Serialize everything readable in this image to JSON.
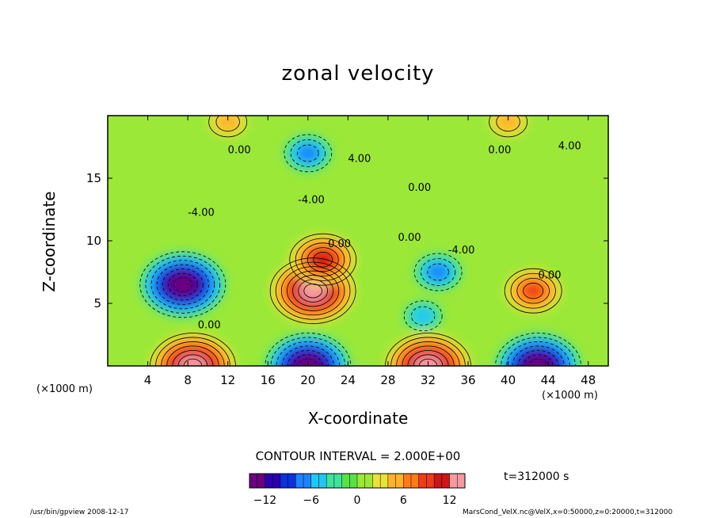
{
  "chart_data": {
    "type": "heatmap",
    "title": "zonal velocity",
    "xlabel": "X-coordinate",
    "ylabel": "Z-coordinate",
    "x_unit_label": "(×1000 m)",
    "xlim": [
      0,
      50
    ],
    "ylim": [
      0,
      20
    ],
    "x_ticks": [
      "4",
      "8",
      "12",
      "16",
      "20",
      "24",
      "28",
      "32",
      "36",
      "40",
      "44",
      "48"
    ],
    "y_ticks": [
      "5",
      "10",
      "15"
    ],
    "contour_interval_text": "CONTOUR INTERVAL = 2.000E+00",
    "contour_labels": [
      "0.00",
      "-4.00",
      "4.00",
      "0.00",
      "-4.00",
      "0.00",
      "0.00",
      "-4.00",
      "0.00",
      "0.00",
      "4.00",
      "0.00"
    ],
    "colorbar": {
      "range": [
        -14,
        14
      ],
      "ticks": [
        "−12",
        "−6",
        "0",
        "6",
        "12"
      ],
      "colors": [
        "#6a0080",
        "#2b00b0",
        "#0a30e0",
        "#1f82ff",
        "#22c7f2",
        "#3de39a",
        "#58e248",
        "#9be838",
        "#e8e23a",
        "#ffb22a",
        "#ff7a1a",
        "#f03a18",
        "#d01418",
        "#f59aa0"
      ]
    },
    "features": [
      {
        "x": 7.5,
        "z": 6.5,
        "value": -14,
        "kind": "minimum"
      },
      {
        "x": 20.5,
        "z": 6.0,
        "value": 14,
        "kind": "maximum"
      },
      {
        "x": 42.5,
        "z": 6.0,
        "value": 8,
        "kind": "maximum"
      },
      {
        "x": 33.0,
        "z": 7.5,
        "value": -6,
        "kind": "minimum"
      },
      {
        "x": 31.5,
        "z": 4.0,
        "value": -4,
        "kind": "minimum"
      },
      {
        "x": 21.5,
        "z": 8.5,
        "value": 10,
        "kind": "maximum"
      },
      {
        "x": 8.5,
        "z": 0.0,
        "value": 14,
        "kind": "maximum"
      },
      {
        "x": 20.0,
        "z": 0.0,
        "value": -14,
        "kind": "minimum"
      },
      {
        "x": 32.0,
        "z": 0.0,
        "value": 14,
        "kind": "maximum"
      },
      {
        "x": 43.0,
        "z": 0.0,
        "value": -14,
        "kind": "minimum"
      },
      {
        "x": 20.0,
        "z": 17.0,
        "value": -6,
        "kind": "minimum"
      },
      {
        "x": 12.0,
        "z": 19.5,
        "value": 4,
        "kind": "maximum"
      },
      {
        "x": 40.0,
        "z": 19.5,
        "value": 4,
        "kind": "maximum"
      }
    ]
  },
  "annotations": {
    "time": "t=312000 s",
    "footer_left": "/usr/bin/gpview  2008-12-17",
    "footer_right": "MarsCond_VelX.nc@VelX,x=0:50000,z=0:20000,t=312000"
  }
}
